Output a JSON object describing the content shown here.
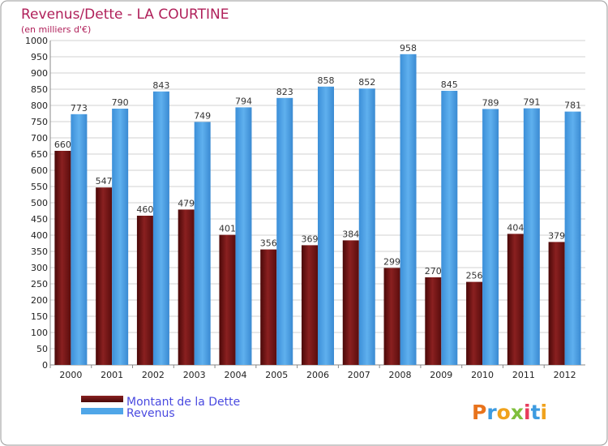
{
  "chart_data": {
    "type": "bar",
    "title": "Revenus/Dette - LA COURTINE",
    "subtitle": "(en milliers d'€)",
    "categories": [
      "2000",
      "2001",
      "2002",
      "2003",
      "2004",
      "2005",
      "2006",
      "2007",
      "2008",
      "2009",
      "2010",
      "2011",
      "2012"
    ],
    "series": [
      {
        "name": "Montant de la Dette",
        "color": "#7a1a1a",
        "values": [
          660,
          547,
          460,
          479,
          401,
          356,
          369,
          384,
          299,
          270,
          256,
          404,
          379
        ]
      },
      {
        "name": "Revenus",
        "color": "#4fa6e8",
        "values": [
          773,
          790,
          843,
          749,
          794,
          823,
          858,
          852,
          958,
          845,
          789,
          791,
          781
        ]
      }
    ],
    "ylim": [
      0,
      1000
    ],
    "ytick_step": 50,
    "grid": true,
    "legend_position": "bottom-left"
  },
  "brand": {
    "logo_text": "Proxiti"
  },
  "colors": {
    "title": "#b0205a",
    "legend_text": "#4a4ae0",
    "frame": "#999999"
  }
}
